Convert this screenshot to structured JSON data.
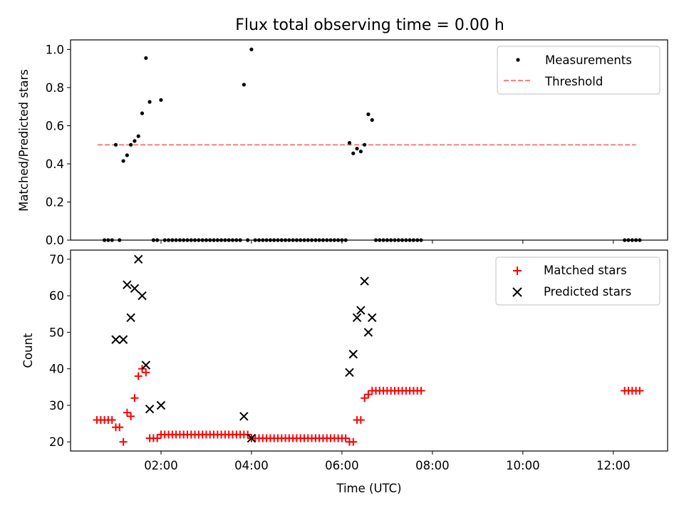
{
  "chart_data": [
    {
      "type": "scatter",
      "title": "Flux total observing time = 0.00 h",
      "xlabel": "",
      "ylabel": "Matched/Predicted stars",
      "xlim_hours": [
        0.0,
        13.2
      ],
      "ylim": [
        0,
        1.05
      ],
      "yticks": [
        "0.0",
        "0.2",
        "0.4",
        "0.6",
        "0.8",
        "1.0"
      ],
      "xticks_hours": [
        2,
        4,
        6,
        8,
        10,
        12
      ],
      "legend_position": "top-right",
      "grid": false,
      "series": [
        {
          "name": "Measurements",
          "kind": "point",
          "color": "#000000",
          "points": [
            [
              0.75,
              0
            ],
            [
              0.833,
              0
            ],
            [
              0.917,
              0
            ],
            [
              1.0,
              0.5
            ],
            [
              1.083,
              0
            ],
            [
              1.167,
              0.415
            ],
            [
              1.25,
              0.445
            ],
            [
              1.333,
              0.5
            ],
            [
              1.417,
              0.52
            ],
            [
              1.5,
              0.545
            ],
            [
              1.583,
              0.665
            ],
            [
              1.667,
              0.955
            ],
            [
              1.75,
              0.725
            ],
            [
              1.833,
              0
            ],
            [
              1.917,
              0
            ],
            [
              2.0,
              0.735
            ],
            [
              2.083,
              0
            ],
            [
              2.167,
              0
            ],
            [
              2.25,
              0
            ],
            [
              2.333,
              0
            ],
            [
              2.417,
              0
            ],
            [
              2.5,
              0
            ],
            [
              2.583,
              0
            ],
            [
              2.667,
              0
            ],
            [
              2.75,
              0
            ],
            [
              2.833,
              0
            ],
            [
              2.917,
              0
            ],
            [
              3.0,
              0
            ],
            [
              3.083,
              0
            ],
            [
              3.167,
              0
            ],
            [
              3.25,
              0
            ],
            [
              3.333,
              0
            ],
            [
              3.417,
              0
            ],
            [
              3.5,
              0
            ],
            [
              3.583,
              0
            ],
            [
              3.667,
              0
            ],
            [
              3.75,
              0
            ],
            [
              3.833,
              0.815
            ],
            [
              3.917,
              0
            ],
            [
              4.0,
              1.0
            ],
            [
              4.083,
              0
            ],
            [
              4.167,
              0
            ],
            [
              4.25,
              0
            ],
            [
              4.333,
              0
            ],
            [
              4.417,
              0
            ],
            [
              4.5,
              0
            ],
            [
              4.583,
              0
            ],
            [
              4.667,
              0
            ],
            [
              4.75,
              0
            ],
            [
              4.833,
              0
            ],
            [
              4.917,
              0
            ],
            [
              5.0,
              0
            ],
            [
              5.083,
              0
            ],
            [
              5.167,
              0
            ],
            [
              5.25,
              0
            ],
            [
              5.333,
              0
            ],
            [
              5.417,
              0
            ],
            [
              5.5,
              0
            ],
            [
              5.583,
              0
            ],
            [
              5.667,
              0
            ],
            [
              5.75,
              0
            ],
            [
              5.833,
              0
            ],
            [
              5.917,
              0
            ],
            [
              6.0,
              0
            ],
            [
              6.083,
              0
            ],
            [
              6.167,
              0.51
            ],
            [
              6.25,
              0.455
            ],
            [
              6.333,
              0.48
            ],
            [
              6.417,
              0.465
            ],
            [
              6.5,
              0.5
            ],
            [
              6.583,
              0.66
            ],
            [
              6.667,
              0.63
            ],
            [
              6.75,
              0
            ],
            [
              6.833,
              0
            ],
            [
              6.917,
              0
            ],
            [
              7.0,
              0
            ],
            [
              7.083,
              0
            ],
            [
              7.167,
              0
            ],
            [
              7.25,
              0
            ],
            [
              7.333,
              0
            ],
            [
              7.417,
              0
            ],
            [
              7.5,
              0
            ],
            [
              7.583,
              0
            ],
            [
              7.667,
              0
            ],
            [
              7.75,
              0
            ],
            [
              12.25,
              0
            ],
            [
              12.333,
              0
            ],
            [
              12.417,
              0
            ],
            [
              12.5,
              0
            ],
            [
              12.583,
              0
            ]
          ]
        },
        {
          "name": "Threshold",
          "kind": "line",
          "color": "#ff7f7f",
          "dash": true,
          "x": [
            0.6,
            12.5
          ],
          "y": [
            0.5,
            0.5
          ]
        }
      ]
    },
    {
      "type": "scatter",
      "title": "",
      "xlabel": "Time (UTC)",
      "ylabel": "Count",
      "xlim_hours": [
        0.0,
        13.2
      ],
      "ylim": [
        17.5,
        72.5
      ],
      "yticks": [
        "20",
        "30",
        "40",
        "50",
        "60",
        "70"
      ],
      "xticks": [
        "02:00",
        "04:00",
        "06:00",
        "08:00",
        "10:00",
        "12:00"
      ],
      "xticks_hours": [
        2,
        4,
        6,
        8,
        10,
        12
      ],
      "legend_position": "top-right",
      "grid": false,
      "series": [
        {
          "name": "Matched stars",
          "kind": "plus",
          "color": "#ff0000",
          "points": [
            [
              0.583,
              26
            ],
            [
              0.667,
              26
            ],
            [
              0.75,
              26
            ],
            [
              0.833,
              26
            ],
            [
              0.917,
              26
            ],
            [
              1.0,
              24
            ],
            [
              1.083,
              24
            ],
            [
              1.167,
              20
            ],
            [
              1.25,
              28
            ],
            [
              1.333,
              27
            ],
            [
              1.417,
              32
            ],
            [
              1.5,
              38
            ],
            [
              1.583,
              40
            ],
            [
              1.667,
              39
            ],
            [
              1.75,
              21
            ],
            [
              1.833,
              21
            ],
            [
              1.917,
              21
            ],
            [
              2.0,
              22
            ],
            [
              2.083,
              22
            ],
            [
              2.167,
              22
            ],
            [
              2.25,
              22
            ],
            [
              2.333,
              22
            ],
            [
              2.417,
              22
            ],
            [
              2.5,
              22
            ],
            [
              2.583,
              22
            ],
            [
              2.667,
              22
            ],
            [
              2.75,
              22
            ],
            [
              2.833,
              22
            ],
            [
              2.917,
              22
            ],
            [
              3.0,
              22
            ],
            [
              3.083,
              22
            ],
            [
              3.167,
              22
            ],
            [
              3.25,
              22
            ],
            [
              3.333,
              22
            ],
            [
              3.417,
              22
            ],
            [
              3.5,
              22
            ],
            [
              3.583,
              22
            ],
            [
              3.667,
              22
            ],
            [
              3.75,
              22
            ],
            [
              3.833,
              22
            ],
            [
              3.917,
              22
            ],
            [
              4.0,
              21
            ],
            [
              4.083,
              21
            ],
            [
              4.167,
              21
            ],
            [
              4.25,
              21
            ],
            [
              4.333,
              21
            ],
            [
              4.417,
              21
            ],
            [
              4.5,
              21
            ],
            [
              4.583,
              21
            ],
            [
              4.667,
              21
            ],
            [
              4.75,
              21
            ],
            [
              4.833,
              21
            ],
            [
              4.917,
              21
            ],
            [
              5.0,
              21
            ],
            [
              5.083,
              21
            ],
            [
              5.167,
              21
            ],
            [
              5.25,
              21
            ],
            [
              5.333,
              21
            ],
            [
              5.417,
              21
            ],
            [
              5.5,
              21
            ],
            [
              5.583,
              21
            ],
            [
              5.667,
              21
            ],
            [
              5.75,
              21
            ],
            [
              5.833,
              21
            ],
            [
              5.917,
              21
            ],
            [
              6.0,
              21
            ],
            [
              6.083,
              21
            ],
            [
              6.167,
              20
            ],
            [
              6.25,
              20
            ],
            [
              6.333,
              26
            ],
            [
              6.417,
              26
            ],
            [
              6.5,
              32
            ],
            [
              6.583,
              33
            ],
            [
              6.667,
              34
            ],
            [
              6.75,
              34
            ],
            [
              6.833,
              34
            ],
            [
              6.917,
              34
            ],
            [
              7.0,
              34
            ],
            [
              7.083,
              34
            ],
            [
              7.167,
              34
            ],
            [
              7.25,
              34
            ],
            [
              7.333,
              34
            ],
            [
              7.417,
              34
            ],
            [
              7.5,
              34
            ],
            [
              7.583,
              34
            ],
            [
              7.667,
              34
            ],
            [
              7.75,
              34
            ],
            [
              12.25,
              34
            ],
            [
              12.333,
              34
            ],
            [
              12.417,
              34
            ],
            [
              12.5,
              34
            ],
            [
              12.583,
              34
            ]
          ]
        },
        {
          "name": "Predicted stars",
          "kind": "x",
          "color": "#000000",
          "points": [
            [
              1.0,
              48
            ],
            [
              1.167,
              48
            ],
            [
              1.25,
              63
            ],
            [
              1.333,
              54
            ],
            [
              1.417,
              62
            ],
            [
              1.5,
              70
            ],
            [
              1.583,
              60
            ],
            [
              1.667,
              41
            ],
            [
              1.75,
              29
            ],
            [
              2.0,
              30
            ],
            [
              3.833,
              27
            ],
            [
              4.0,
              21
            ],
            [
              6.167,
              39
            ],
            [
              6.25,
              44
            ],
            [
              6.333,
              54
            ],
            [
              6.417,
              56
            ],
            [
              6.5,
              64
            ],
            [
              6.583,
              50
            ],
            [
              6.667,
              54
            ]
          ]
        }
      ]
    }
  ]
}
